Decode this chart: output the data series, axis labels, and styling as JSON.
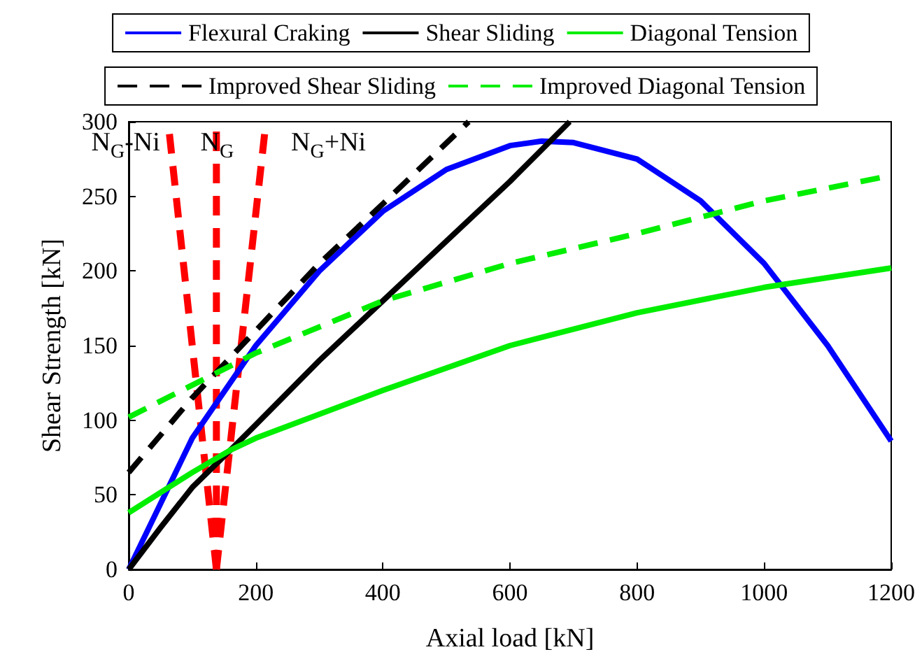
{
  "chart_data": {
    "type": "line",
    "xlabel": "Axial load [kN]",
    "ylabel": "Shear Strength [kN]",
    "xlim": [
      0,
      1200
    ],
    "xticks": [
      0,
      200,
      400,
      600,
      800,
      1000,
      1200
    ],
    "ylim": [
      0,
      300
    ],
    "yticks": [
      0,
      50,
      100,
      150,
      200,
      250,
      300
    ],
    "grid": false,
    "legend": "top",
    "marker": "none",
    "series": [
      {
        "name": "Flexural Craking",
        "color": "#0000ff",
        "line_style": "solid",
        "x": [
          0,
          100,
          200,
          300,
          400,
          500,
          600,
          650,
          700,
          800,
          900,
          1000,
          1100,
          1200
        ],
        "values": [
          0,
          88,
          150,
          200,
          240,
          268,
          284,
          287,
          286,
          275,
          247,
          205,
          150,
          86
        ]
      },
      {
        "name": "Shear Sliding",
        "color": "#000000",
        "line_style": "solid",
        "x": [
          0,
          50,
          100,
          160,
          200,
          300,
          400,
          500,
          600,
          694
        ],
        "values": [
          0,
          28,
          55,
          80,
          97,
          140,
          180,
          220,
          260,
          300
        ]
      },
      {
        "name": "Diagonal Tension",
        "color": "#00ee00",
        "line_style": "solid",
        "x": [
          0,
          100,
          160,
          200,
          400,
          600,
          800,
          1000,
          1200
        ],
        "values": [
          38,
          65,
          80,
          88,
          120,
          150,
          172,
          189,
          202
        ]
      },
      {
        "name": "Improved Shear Sliding",
        "color": "#000000",
        "line_style": "dashed",
        "x": [
          0,
          100,
          200,
          300,
          400,
          535
        ],
        "values": [
          65,
          115,
          160,
          205,
          245,
          300
        ]
      },
      {
        "name": "Improved Diagonal Tension",
        "color": "#00ee00",
        "line_style": "dashed",
        "x": [
          0,
          200,
          400,
          600,
          800,
          1000,
          1200
        ],
        "values": [
          102,
          145,
          180,
          205,
          225,
          247,
          264
        ]
      },
      {
        "color": "#ff0000",
        "line_style": "dashed",
        "x": [
          138,
          62
        ],
        "values": [
          0,
          300
        ]
      },
      {
        "color": "#ff0000",
        "line_style": "dashed",
        "x": [
          138,
          138
        ],
        "values": [
          0,
          300
        ]
      },
      {
        "color": "#ff0000",
        "line_style": "dashed",
        "x": [
          138,
          216
        ],
        "values": [
          0,
          300
        ]
      }
    ],
    "annotations": [
      "N$_{G}$-Ni",
      "N$_{G}$",
      "N$_{G}$+Ni"
    ]
  }
}
